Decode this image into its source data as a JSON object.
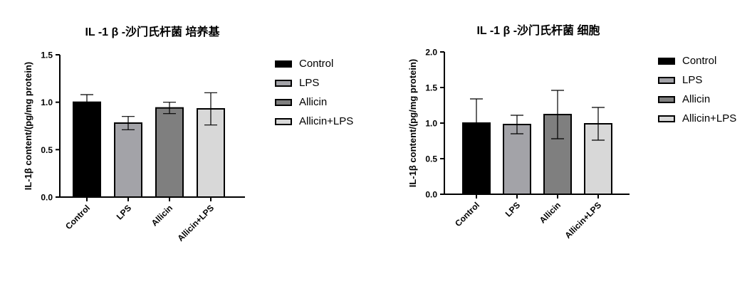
{
  "chart_data": [
    {
      "type": "bar",
      "title": "IL -1 β -沙门氏杆菌 培养基",
      "ylabel": "IL-1β content/(pg/mg protein)",
      "xlabel": "",
      "categories": [
        "Control",
        "LPS",
        "Allicin",
        "Allicin+LPS"
      ],
      "values": [
        1.0,
        0.78,
        0.94,
        0.93
      ],
      "error": [
        0.08,
        0.07,
        0.06,
        0.17
      ],
      "colors": [
        "#000000",
        "#a3a3a8",
        "#7f7f7f",
        "#d8d8d8"
      ],
      "ylim": [
        0,
        1.5
      ],
      "yticks": [
        "0.0",
        "0.5",
        "1.0",
        "1.5"
      ],
      "grid": false,
      "legend": [
        "Control",
        "LPS",
        "Allicin",
        "Allicin+LPS"
      ],
      "legend_position": "right"
    },
    {
      "type": "bar",
      "title": "IL -1 β -沙门氏杆菌 细胞",
      "ylabel": "IL-1β content/(pg/mg protein)",
      "xlabel": "",
      "categories": [
        "Control",
        "LPS",
        "Allicin",
        "Allicin+LPS"
      ],
      "values": [
        1.0,
        0.98,
        1.12,
        0.99
      ],
      "error": [
        0.34,
        0.13,
        0.34,
        0.23
      ],
      "colors": [
        "#000000",
        "#a3a3a8",
        "#7f7f7f",
        "#d8d8d8"
      ],
      "ylim": [
        0,
        2.0
      ],
      "yticks": [
        "0.0",
        "0.5",
        "1.0",
        "1.5",
        "2.0"
      ],
      "grid": false,
      "legend": [
        "Control",
        "LPS",
        "Allicin",
        "Allicin+LPS"
      ],
      "legend_position": "right"
    }
  ]
}
